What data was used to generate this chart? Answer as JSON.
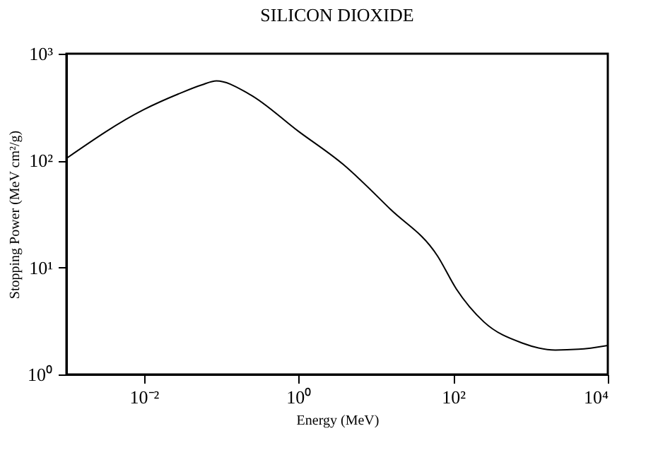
{
  "chart_data": {
    "type": "line",
    "title": "SILICON DIOXIDE",
    "xlabel": "Energy (MeV)",
    "ylabel": "Stopping Power (MeV cm²/g)",
    "log": "xy",
    "grid": false,
    "legend": false,
    "marker": "none",
    "line_style": "solid",
    "xlim": [
      0.001,
      10000
    ],
    "ylim": [
      1,
      1000
    ],
    "xticks": [
      {
        "value": 0.01,
        "label": "10⁻²"
      },
      {
        "value": 1,
        "label": "10⁰"
      },
      {
        "value": 100,
        "label": "10²"
      },
      {
        "value": 10000,
        "label": "10⁴"
      }
    ],
    "yticks": [
      {
        "value": 1,
        "label": "10⁰"
      },
      {
        "value": 10,
        "label": "10¹"
      },
      {
        "value": 100,
        "label": "10²"
      },
      {
        "value": 1000,
        "label": "10³"
      }
    ],
    "series": [
      {
        "color": "#000000",
        "x": [
          0.001,
          0.01,
          0.028,
          0.056,
          0.087,
          0.23,
          1,
          3.8,
          15.5,
          63,
          110,
          250,
          780,
          2100,
          4200,
          10000
        ],
        "values": [
          105,
          300,
          420,
          510,
          556,
          420,
          188,
          92,
          35,
          12.8,
          6.3,
          3.1,
          1.97,
          1.69,
          1.72,
          1.87
        ]
      }
    ]
  }
}
